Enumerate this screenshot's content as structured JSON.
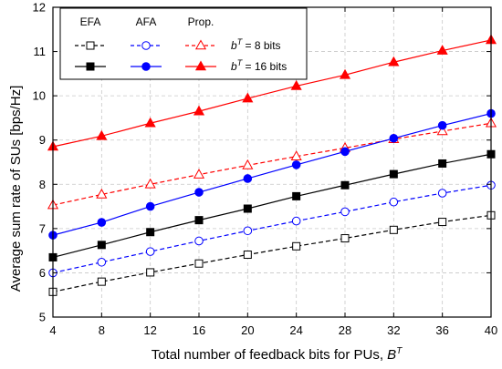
{
  "chart_data": {
    "type": "line",
    "title": "",
    "xlabel": "Total number of feedback bits for PUs, ",
    "xlabel_symbol": "B",
    "xlabel_sup": "T",
    "ylabel": "Average sum rate of SUs [bps/Hz]",
    "xlim": [
      4,
      40
    ],
    "ylim": [
      5,
      12
    ],
    "x_ticks": [
      "4",
      "8",
      "12",
      "16",
      "20",
      "24",
      "28",
      "32",
      "36",
      "40"
    ],
    "y_ticks": [
      "5",
      "6",
      "7",
      "8",
      "9",
      "10",
      "11",
      "12"
    ],
    "grid": true,
    "legend_position": "top-left",
    "legend": {
      "col_headers": [
        "EFA",
        "AFA",
        "Prop."
      ],
      "rows": [
        {
          "sym": "b",
          "sup": "T",
          "rest": " = 8 bits"
        },
        {
          "sym": "b",
          "sup": "T",
          "rest": " = 16 bits"
        }
      ]
    },
    "x": [
      4,
      8,
      12,
      16,
      20,
      24,
      28,
      32,
      36,
      40
    ],
    "series": [
      {
        "scheme": "EFA",
        "bits": "8",
        "color": "#000000",
        "dashed": true,
        "marker": "square",
        "filled": false,
        "values": [
          5.57,
          5.8,
          6.01,
          6.21,
          6.41,
          6.6,
          6.78,
          6.97,
          7.15,
          7.3
        ]
      },
      {
        "scheme": "AFA",
        "bits": "8",
        "color": "#0000ff",
        "dashed": true,
        "marker": "circle",
        "filled": false,
        "values": [
          6.0,
          6.24,
          6.48,
          6.72,
          6.95,
          7.17,
          7.38,
          7.6,
          7.8,
          7.98
        ]
      },
      {
        "scheme": "Prop.",
        "bits": "8",
        "color": "#ff0000",
        "dashed": true,
        "marker": "triangle",
        "filled": false,
        "values": [
          7.53,
          7.77,
          8.0,
          8.22,
          8.43,
          8.63,
          8.82,
          9.02,
          9.2,
          9.38
        ]
      },
      {
        "scheme": "EFA",
        "bits": "16",
        "color": "#000000",
        "dashed": false,
        "marker": "square",
        "filled": true,
        "values": [
          6.35,
          6.63,
          6.92,
          7.19,
          7.45,
          7.73,
          7.98,
          8.23,
          8.47,
          8.68
        ]
      },
      {
        "scheme": "AFA",
        "bits": "16",
        "color": "#0000ff",
        "dashed": false,
        "marker": "circle",
        "filled": true,
        "values": [
          6.85,
          7.14,
          7.5,
          7.82,
          8.13,
          8.44,
          8.74,
          9.04,
          9.33,
          9.6
        ]
      },
      {
        "scheme": "Prop.",
        "bits": "16",
        "color": "#ff0000",
        "dashed": false,
        "marker": "triangle",
        "filled": true,
        "values": [
          8.85,
          9.09,
          9.38,
          9.65,
          9.94,
          10.22,
          10.47,
          10.76,
          11.02,
          11.26
        ]
      }
    ]
  }
}
